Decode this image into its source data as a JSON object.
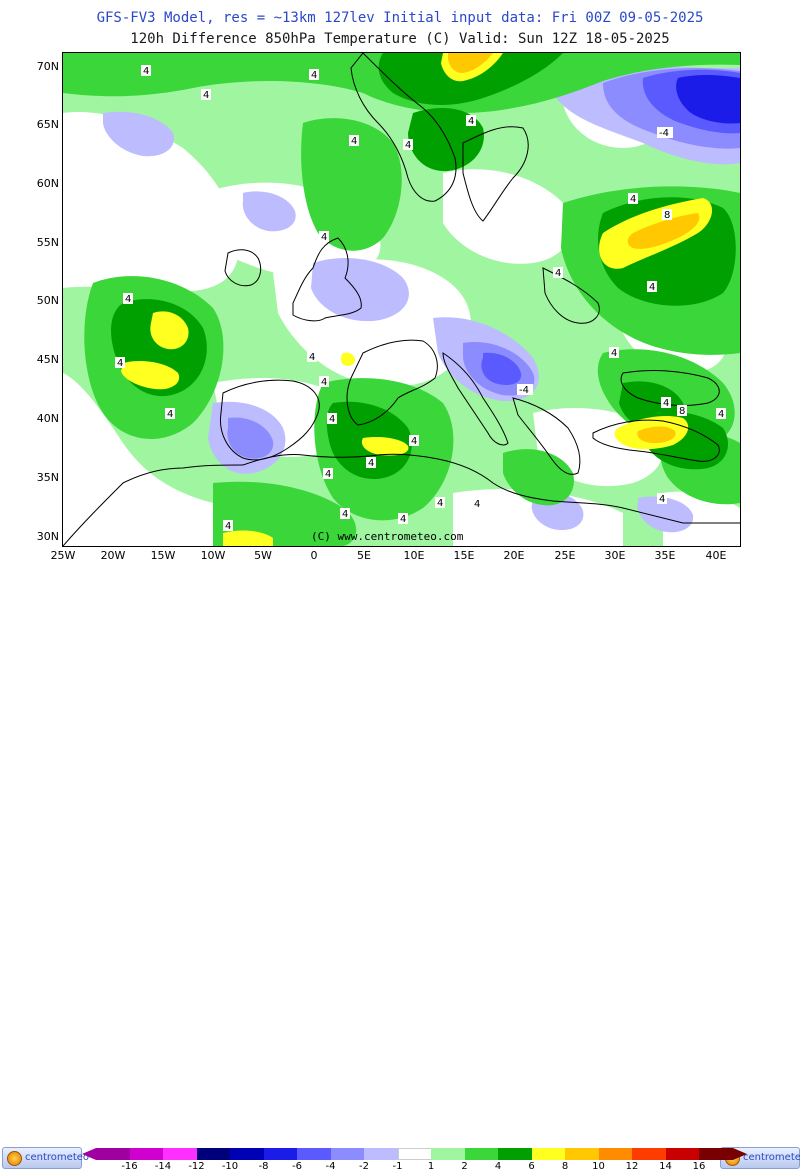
{
  "header": {
    "line1": "GFS-FV3 Model, res = ~13km 127lev   Initial input data: Fri 00Z 09-05-2025",
    "line2": "120h Difference 850hPa Temperature (C)  Valid: Sun 12Z 18-05-2025"
  },
  "axes": {
    "lat_labels": [
      "70N",
      "65N",
      "60N",
      "55N",
      "50N",
      "45N",
      "40N",
      "35N",
      "30N"
    ],
    "lon_labels": [
      "25W",
      "20W",
      "15W",
      "10W",
      "5W",
      "0",
      "5E",
      "10E",
      "15E",
      "20E",
      "25E",
      "30E",
      "35E",
      "40E"
    ]
  },
  "watermark": "(C) www.centrometeo.com",
  "contour_labels": [
    "4",
    "4",
    "4",
    "4",
    "4",
    "4",
    "4",
    "4",
    "4",
    "4",
    "4",
    "4",
    "4",
    "4",
    "4",
    "4",
    "4",
    "4",
    "4",
    "4",
    "4",
    "4",
    "4",
    "4",
    "4",
    "4",
    "4",
    "4",
    "-4",
    "-4",
    "8",
    "8"
  ],
  "legend": {
    "labels": [
      "-16",
      "-14",
      "-12",
      "-10",
      "-8",
      "-6",
      "-4",
      "-2",
      "-1",
      "1",
      "2",
      "4",
      "6",
      "8",
      "10",
      "12",
      "14",
      "16"
    ],
    "colors": [
      "#a000a0",
      "#d000d0",
      "#ff30ff",
      "#00007a",
      "#0000b4",
      "#1c1ce8",
      "#5a5aff",
      "#8c8cff",
      "#bcbcff",
      "#ffffff",
      "#a0f5a0",
      "#3ad63a",
      "#00a000",
      "#ffff20",
      "#ffc800",
      "#ff8c00",
      "#ff3c00",
      "#c80000",
      "#780000"
    ]
  },
  "logos": {
    "left": "centrometeo",
    "right": "centrometeo"
  }
}
